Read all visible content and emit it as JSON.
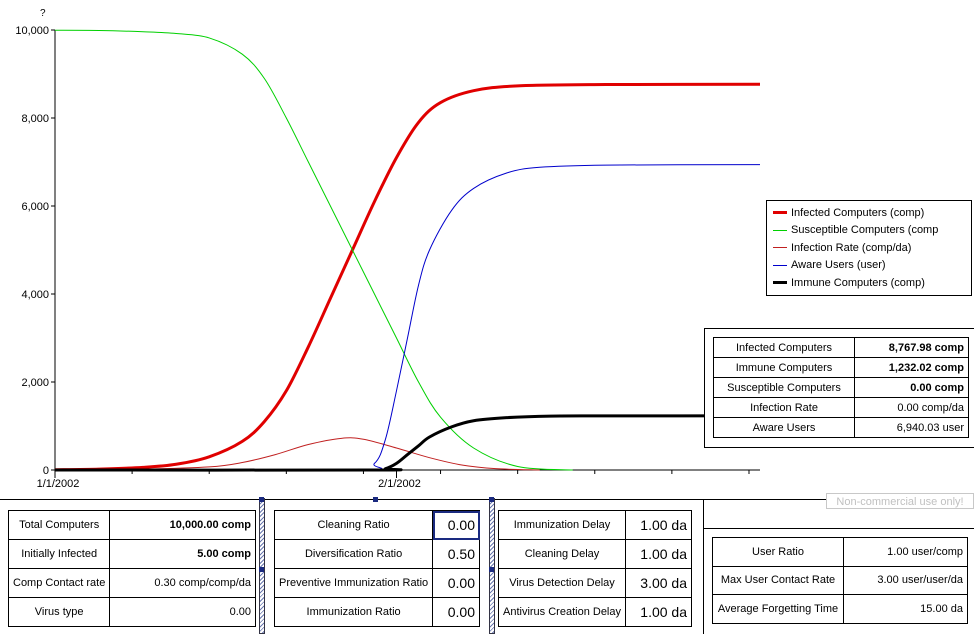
{
  "chart_data": {
    "type": "line",
    "ylim": [
      0,
      10000
    ],
    "yticks": [
      0,
      2000,
      4000,
      6000,
      8000,
      10000
    ],
    "ytick_labels": [
      "0",
      "2,000",
      "4,000",
      "6,000",
      "8,000",
      "10,000"
    ],
    "xlim": [
      "2002-01-01",
      "2002-03-06"
    ],
    "xticks": [
      "2002-01-01",
      "2002-02-01"
    ],
    "xtick_labels": [
      "1/1/2002",
      "2/1/2002"
    ],
    "y_axis_marker": "?",
    "series": [
      {
        "name": "Infected Computers (comp)",
        "color": "#e00000",
        "width": 3,
        "x": [
          "2002-01-01",
          "2002-01-05",
          "2002-01-09",
          "2002-01-12",
          "2002-01-15",
          "2002-01-18",
          "2002-01-20",
          "2002-01-22",
          "2002-01-24",
          "2002-01-26",
          "2002-01-28",
          "2002-01-30",
          "2002-02-01",
          "2002-02-03",
          "2002-02-05",
          "2002-02-08",
          "2002-02-12",
          "2002-02-20",
          "2002-03-06"
        ],
        "y": [
          5,
          20,
          60,
          130,
          300,
          650,
          1100,
          1800,
          2800,
          3900,
          5000,
          6100,
          7100,
          7900,
          8350,
          8620,
          8730,
          8760,
          8768
        ]
      },
      {
        "name": "Susceptible Computers (comp",
        "color": "#00d000",
        "width": 1,
        "x": [
          "2002-01-01",
          "2002-01-05",
          "2002-01-09",
          "2002-01-12",
          "2002-01-15",
          "2002-01-18",
          "2002-01-20",
          "2002-01-22",
          "2002-01-24",
          "2002-01-26",
          "2002-01-28",
          "2002-01-30",
          "2002-02-01",
          "2002-02-03",
          "2002-02-05",
          "2002-02-08",
          "2002-02-12",
          "2002-02-17"
        ],
        "y": [
          9995,
          9990,
          9960,
          9920,
          9820,
          9450,
          8900,
          8000,
          7000,
          6000,
          5000,
          4000,
          3000,
          2000,
          1200,
          500,
          80,
          0
        ]
      },
      {
        "name": "Infection Rate (comp/da)",
        "color": "#c02020",
        "width": 1,
        "x": [
          "2002-01-01",
          "2002-01-09",
          "2002-01-15",
          "2002-01-18",
          "2002-01-21",
          "2002-01-24",
          "2002-01-27",
          "2002-01-29",
          "2002-02-01",
          "2002-02-04",
          "2002-02-07",
          "2002-02-10",
          "2002-02-14"
        ],
        "y": [
          0,
          20,
          70,
          170,
          350,
          580,
          720,
          700,
          500,
          280,
          110,
          30,
          0
        ]
      },
      {
        "name": "Aware Users (user)",
        "color": "#0000cc",
        "width": 1,
        "x": [
          "2002-01-01",
          "2002-01-28",
          "2002-01-30",
          "2002-01-31",
          "2002-02-01",
          "2002-02-02",
          "2002-02-03",
          "2002-02-04",
          "2002-02-06",
          "2002-02-08",
          "2002-02-11",
          "2002-02-14",
          "2002-02-20",
          "2002-03-06"
        ],
        "y": [
          0,
          0,
          150,
          700,
          1800,
          3000,
          4200,
          5000,
          5900,
          6400,
          6750,
          6880,
          6930,
          6940
        ]
      },
      {
        "name": "Immune Computers (comp)",
        "color": "#000000",
        "width": 3,
        "x": [
          "2002-01-01",
          "2002-01-30",
          "2002-01-31",
          "2002-02-01",
          "2002-02-02",
          "2002-02-03",
          "2002-02-04",
          "2002-02-06",
          "2002-02-08",
          "2002-02-11",
          "2002-02-15",
          "2002-02-20",
          "2002-03-06"
        ],
        "y": [
          0,
          0,
          30,
          150,
          350,
          550,
          750,
          980,
          1120,
          1190,
          1225,
          1230,
          1232
        ]
      }
    ]
  },
  "results_table": [
    {
      "label": "Infected Computers",
      "value": "8,767.98 comp",
      "bold": true
    },
    {
      "label": "Immune Computers",
      "value": "1,232.02 comp",
      "bold": true
    },
    {
      "label": "Susceptible Computers",
      "value": "0.00 comp",
      "bold": true
    },
    {
      "label": "Infection Rate",
      "value": "0.00 comp/da",
      "bold": false
    },
    {
      "label": "Aware Users",
      "value": "6,940.03 user",
      "bold": false
    }
  ],
  "params_left": [
    {
      "label": "Total Computers",
      "value": "10,000.00 comp",
      "bold": true
    },
    {
      "label": "Initially Infected",
      "value": "5.00 comp",
      "bold": true
    },
    {
      "label": "Comp Contact rate",
      "value": "0.30 comp/comp/da",
      "bold": false
    },
    {
      "label": "Virus type",
      "value": "0.00",
      "bold": false
    }
  ],
  "params_mid": [
    {
      "label": "Cleaning Ratio",
      "value": "0.00"
    },
    {
      "label": "Diversification Ratio",
      "value": "0.50"
    },
    {
      "label": "Preventive Immunization Ratio",
      "value": "0.00"
    },
    {
      "label": "Immunization Ratio",
      "value": "0.00"
    }
  ],
  "params_right": [
    {
      "label": "Immunization Delay",
      "value": "1.00 da"
    },
    {
      "label": "Cleaning Delay",
      "value": "1.00 da"
    },
    {
      "label": "Virus Detection Delay",
      "value": "3.00 da"
    },
    {
      "label": "Antivirus Creation Delay",
      "value": "1.00 da"
    }
  ],
  "params_user": [
    {
      "label": "User Ratio",
      "value": "1.00 user/comp"
    },
    {
      "label": "Max User Contact Rate",
      "value": "3.00 user/user/da"
    },
    {
      "label": "Average Forgetting Time",
      "value": "15.00 da"
    }
  ],
  "watermark": "Non-commercial use only!"
}
